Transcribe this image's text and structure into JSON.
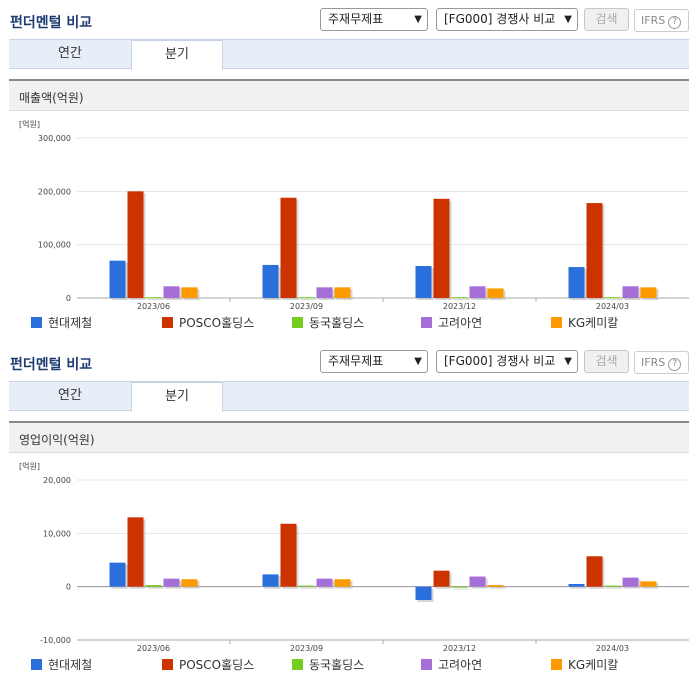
{
  "colors": {
    "hyundai": "#2a6fdb",
    "posco": "#cc3300",
    "dongkuk": "#77cc22",
    "korea_zinc": "#a66fd8",
    "kg": "#ff9900"
  },
  "panels": [
    {
      "title": "펀더멘털 비교",
      "select1": "주재무제표",
      "select2": "[FG000] 경쟁사 비교",
      "search_label": "검색",
      "ifrs_label": "IFRS",
      "tabs": [
        "연간",
        "분기"
      ],
      "active_tab": 1,
      "chart_title": "매출액(억원)",
      "unit": "[억원]",
      "ticks": [
        "300,000",
        "200,000",
        "100,000",
        "0"
      ]
    },
    {
      "title": "펀더멘털 비교",
      "select1": "주재무제표",
      "select2": "[FG000] 경쟁사 비교",
      "search_label": "검색",
      "ifrs_label": "IFRS",
      "tabs": [
        "연간",
        "분기"
      ],
      "active_tab": 1,
      "chart_title": "영업이익(억원)",
      "unit": "[억원]",
      "ticks": [
        "20,000",
        "10,000",
        "0",
        "-10,000"
      ]
    }
  ],
  "chart_data": [
    {
      "type": "bar",
      "title": "매출액(억원)",
      "ylabel": "[억원]",
      "categories": [
        "2023/06",
        "2023/09",
        "2023/12",
        "2024/03"
      ],
      "ylim": [
        0,
        300000
      ],
      "series": [
        {
          "name": "현대제철",
          "values": [
            70000,
            62000,
            60000,
            58000
          ]
        },
        {
          "name": "POSCO홀딩스",
          "values": [
            200000,
            188000,
            186000,
            178000
          ]
        },
        {
          "name": "동국홀딩스",
          "values": [
            1500,
            1500,
            1500,
            1500
          ]
        },
        {
          "name": "고려아연",
          "values": [
            22000,
            20000,
            22000,
            22000
          ]
        },
        {
          "name": "KG케미칼",
          "values": [
            20000,
            20000,
            18000,
            20000
          ]
        }
      ]
    },
    {
      "type": "bar",
      "title": "영업이익(억원)",
      "ylabel": "[억원]",
      "categories": [
        "2023/06",
        "2023/09",
        "2023/12",
        "2024/03"
      ],
      "ylim": [
        -10000,
        20000
      ],
      "series": [
        {
          "name": "현대제철",
          "values": [
            4500,
            2300,
            -2500,
            500
          ]
        },
        {
          "name": "POSCO홀딩스",
          "values": [
            13000,
            11800,
            3000,
            5700
          ]
        },
        {
          "name": "동국홀딩스",
          "values": [
            300,
            200,
            0,
            200
          ]
        },
        {
          "name": "고려아연",
          "values": [
            1500,
            1500,
            1900,
            1700
          ]
        },
        {
          "name": "KG케미칼",
          "values": [
            1400,
            1400,
            300,
            1000
          ]
        }
      ]
    }
  ]
}
